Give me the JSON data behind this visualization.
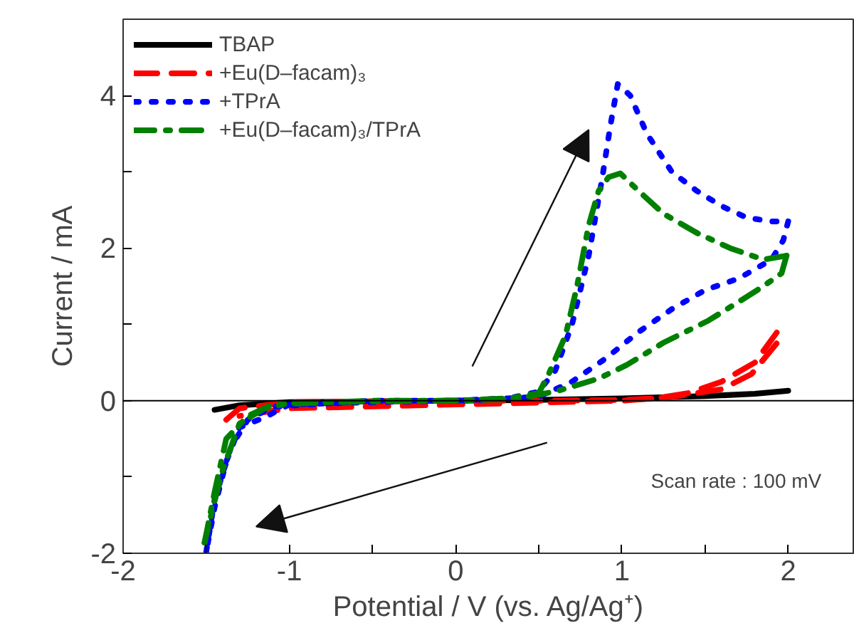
{
  "chart_data": {
    "type": "line",
    "xlabel": "Potential / V (vs. Ag/Ag⁺)",
    "ylabel": "Current / mA",
    "xlim": [
      -2,
      2.4
    ],
    "ylim": [
      -2,
      5
    ],
    "xticks": [
      -2,
      {
        "value": -1.5,
        "label": null
      },
      -1,
      {
        "value": -0.5,
        "label": null
      },
      0,
      {
        "value": 0.5,
        "label": null
      },
      1,
      {
        "value": 1.5,
        "label": null
      },
      2
    ],
    "yticks": [
      -2,
      {
        "value": -1,
        "label": null
      },
      0,
      {
        "value": 1,
        "label": null
      },
      2,
      {
        "value": 3,
        "label": null
      },
      4
    ],
    "grid": false,
    "legend": "top left",
    "marker": "none",
    "ref_lines": [
      {
        "axis": "y",
        "value": 0,
        "color": "#000000",
        "line_style": "solid"
      }
    ],
    "annotations": [
      "Scan rate : 100 mV"
    ],
    "series": [
      {
        "name": "TBAP",
        "color": "#000000",
        "line_style": "solid",
        "x": [
          -1.45,
          -1.3,
          -1.0,
          -0.5,
          0,
          0.5,
          1.0,
          1.5,
          1.8,
          2.0
        ],
        "values": [
          -0.12,
          -0.06,
          -0.02,
          -0.01,
          0,
          0.01,
          0.03,
          0.06,
          0.09,
          0.13
        ]
      },
      {
        "name": "+Eu(D–facam)₃",
        "color": "#ff0000",
        "line_style": "dashed",
        "x": [
          -1.38,
          -1.3,
          -1.0,
          0,
          0.6,
          1.0,
          1.2,
          1.4,
          1.6,
          1.8,
          1.95
        ],
        "values": [
          -0.25,
          -0.1,
          -0.02,
          0,
          0,
          0.01,
          0.03,
          0.1,
          0.25,
          0.5,
          0.95
        ]
      },
      {
        "color": "#ff0000",
        "line_style": "dashed",
        "x": [
          1.93,
          1.78,
          1.6,
          1.3,
          1.0,
          0,
          -1.0,
          -1.3
        ],
        "values": [
          0.75,
          0.35,
          0.15,
          0.05,
          0,
          -0.05,
          -0.1,
          -0.2
        ]
      },
      {
        "name": "+TPrA",
        "color": "#0000ff",
        "line_style": "dotted",
        "x": [
          -1.5,
          -1.45,
          -1.35,
          -1.25,
          -1.1,
          -0.5,
          0,
          0.3,
          0.5,
          0.6,
          0.7,
          0.8,
          0.88,
          0.93,
          0.975,
          1.05,
          1.15,
          1.3,
          1.45,
          1.6,
          1.75,
          1.9,
          2.0
        ],
        "values": [
          -1.98,
          -1.3,
          -0.6,
          -0.25,
          -0.08,
          0,
          0,
          0.02,
          0.12,
          0.4,
          1.0,
          1.9,
          2.9,
          3.6,
          4.15,
          4.0,
          3.5,
          3.0,
          2.75,
          2.55,
          2.4,
          2.35,
          2.35
        ]
      },
      {
        "color": "#0000ff",
        "line_style": "dotted",
        "x": [
          2.0,
          1.97,
          1.9,
          1.7,
          1.5,
          1.3,
          1.1,
          0.9,
          0.7,
          0.5,
          0,
          -0.5,
          -1.0,
          -1.15,
          -1.3,
          -1.38,
          -1.45,
          -1.5
        ],
        "values": [
          2.35,
          2.1,
          1.85,
          1.6,
          1.45,
          1.2,
          0.9,
          0.55,
          0.25,
          0.05,
          0,
          -0.02,
          -0.05,
          -0.22,
          -0.35,
          -0.8,
          -1.4,
          -1.98
        ]
      },
      {
        "name": "+Eu(D–facam)₃/TPrA",
        "color": "#008000",
        "line_style": "dashdot",
        "x": [
          -1.51,
          -1.45,
          -1.38,
          -1.25,
          -1.1,
          -0.5,
          0,
          0.3,
          0.5,
          0.56,
          0.66,
          0.73,
          0.8,
          0.86,
          0.92,
          0.99,
          1.1,
          1.25,
          1.45,
          1.65,
          1.85,
          1.99
        ],
        "values": [
          -1.86,
          -1.2,
          -0.5,
          -0.2,
          -0.05,
          0,
          0,
          0.02,
          0.1,
          0.35,
          0.85,
          1.5,
          2.3,
          2.75,
          2.93,
          2.98,
          2.75,
          2.45,
          2.2,
          2.0,
          1.85,
          1.9
        ]
      },
      {
        "color": "#008000",
        "line_style": "dashdot",
        "x": [
          1.99,
          1.96,
          1.85,
          1.72,
          1.52,
          1.25,
          1.03,
          0.86,
          0.6,
          0.4,
          0,
          -0.5,
          -1.0,
          -1.15,
          -1.3,
          -1.4,
          -1.46,
          -1.51
        ],
        "values": [
          1.9,
          1.67,
          1.5,
          1.32,
          1.05,
          0.76,
          0.47,
          0.29,
          0.12,
          0.04,
          0,
          -0.01,
          -0.03,
          -0.1,
          -0.3,
          -0.9,
          -1.4,
          -1.86
        ]
      }
    ]
  }
}
